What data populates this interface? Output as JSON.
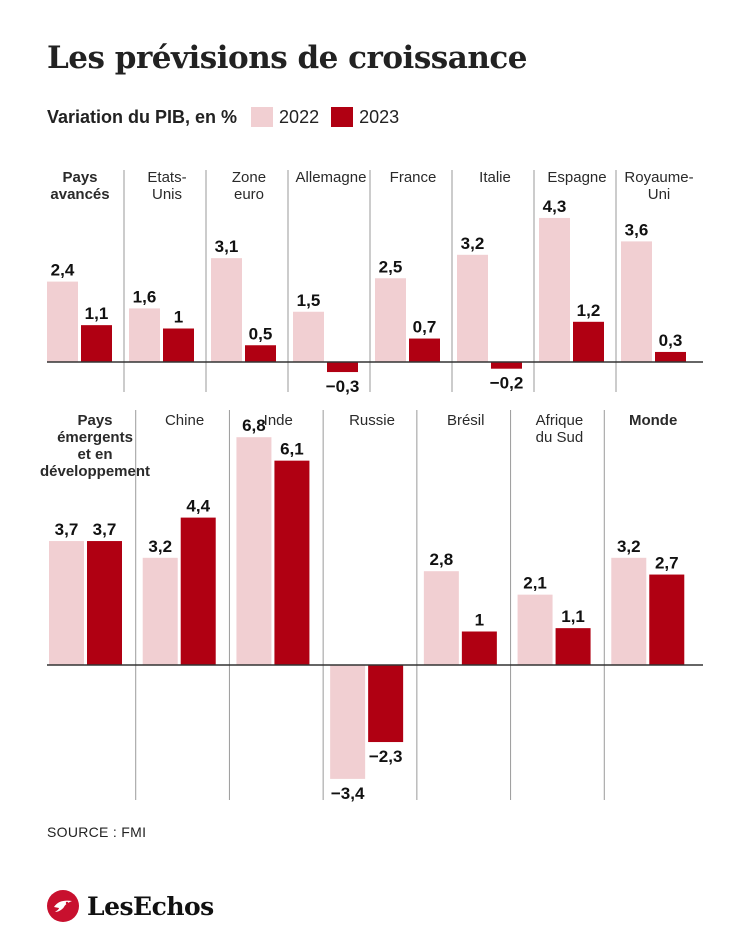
{
  "title": "Les prévisions de croissance",
  "legend": {
    "subtitle": "Variation du PIB, en %",
    "items": [
      {
        "label": "2022",
        "color": "#f1cfd2"
      },
      {
        "label": "2023",
        "color": "#b00012"
      }
    ]
  },
  "source": "SOURCE : FMI",
  "logo": {
    "brand": "LesEchos",
    "icon": "echos-bird-icon"
  },
  "chart_data": [
    {
      "type": "bar",
      "group": "advanced",
      "series": [
        {
          "name": "2022",
          "values": [
            2.4,
            1.6,
            3.1,
            1.5,
            2.5,
            3.2,
            4.3,
            3.6
          ]
        },
        {
          "name": "2023",
          "values": [
            1.1,
            1,
            0.5,
            -0.3,
            0.7,
            -0.2,
            1.2,
            0.3
          ]
        }
      ],
      "categories": [
        {
          "lines": [
            "Pays",
            "avancés"
          ],
          "bold": true
        },
        {
          "lines": [
            "Etats-",
            "Unis"
          ],
          "bold": false
        },
        {
          "lines": [
            "Zone",
            "euro"
          ],
          "bold": false
        },
        {
          "lines": [
            "Allemagne"
          ],
          "bold": false
        },
        {
          "lines": [
            "France"
          ],
          "bold": false
        },
        {
          "lines": [
            "Italie"
          ],
          "bold": false
        },
        {
          "lines": [
            "Espagne"
          ],
          "bold": false
        },
        {
          "lines": [
            "Royaume-",
            "Uni"
          ],
          "bold": false
        }
      ],
      "value_labels": [
        [
          "2,4",
          "1,6",
          "3,1",
          "1,5",
          "2,5",
          "3,2",
          "4,3",
          "3,6"
        ],
        [
          "1,1",
          "1",
          "0,5",
          "−0,3",
          "0,7",
          "−0,2",
          "1,2",
          "0,3"
        ]
      ]
    },
    {
      "type": "bar",
      "group": "emerging",
      "series": [
        {
          "name": "2022",
          "values": [
            3.7,
            3.2,
            6.8,
            -3.4,
            2.8,
            2.1,
            3.2
          ]
        },
        {
          "name": "2023",
          "values": [
            3.7,
            4.4,
            6.1,
            -2.3,
            1,
            1.1,
            2.7
          ]
        }
      ],
      "categories": [
        {
          "lines": [
            "Pays",
            "émergents",
            "et en",
            "développement"
          ],
          "bold": true
        },
        {
          "lines": [
            "Chine"
          ],
          "bold": false
        },
        {
          "lines": [
            "Inde"
          ],
          "bold": false
        },
        {
          "lines": [
            "Russie"
          ],
          "bold": false
        },
        {
          "lines": [
            "Brésil"
          ],
          "bold": false
        },
        {
          "lines": [
            "Afrique",
            "du Sud"
          ],
          "bold": false
        },
        {
          "lines": [
            "Monde"
          ],
          "bold": true
        }
      ],
      "value_labels": [
        [
          "3,7",
          "3,2",
          "6,8",
          "−3,4",
          "2,8",
          "2,1",
          "3,2"
        ],
        [
          "3,7",
          "4,4",
          "6,1",
          "−2,3",
          "1",
          "1,1",
          "2,7"
        ]
      ]
    }
  ]
}
